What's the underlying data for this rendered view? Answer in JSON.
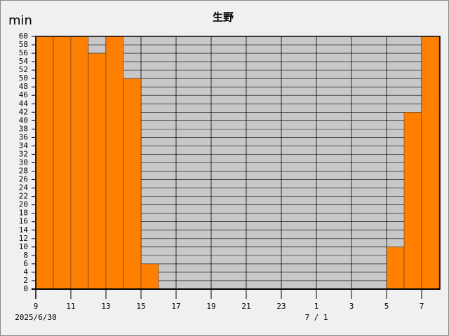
{
  "chart_data": {
    "type": "bar",
    "title": "生野",
    "y_label": "min",
    "categories": [
      "9",
      null,
      "11",
      null,
      "13",
      null,
      "15",
      null,
      "17",
      null,
      "19",
      null,
      "21",
      null,
      "23",
      null,
      "1",
      null,
      "3",
      null,
      "5",
      null,
      "7"
    ],
    "values": [
      60,
      60,
      60,
      56,
      60,
      50,
      6,
      0,
      0,
      0,
      0,
      0,
      0,
      0,
      0,
      0,
      0,
      0,
      0,
      0,
      10,
      42,
      60
    ],
    "date_labels": [
      {
        "category": 0,
        "label": "2025/6/30"
      },
      {
        "category": 16,
        "label": "7 / 1"
      }
    ],
    "color": "#ff8000",
    "ylim": [
      0,
      60
    ],
    "yticks": [
      0,
      2,
      4,
      6,
      8,
      10,
      12,
      14,
      16,
      18,
      20,
      22,
      24,
      26,
      28,
      30,
      32,
      34,
      36,
      38,
      40,
      42,
      44,
      46,
      48,
      50,
      52,
      54,
      56,
      58,
      60
    ],
    "grid": true
  }
}
